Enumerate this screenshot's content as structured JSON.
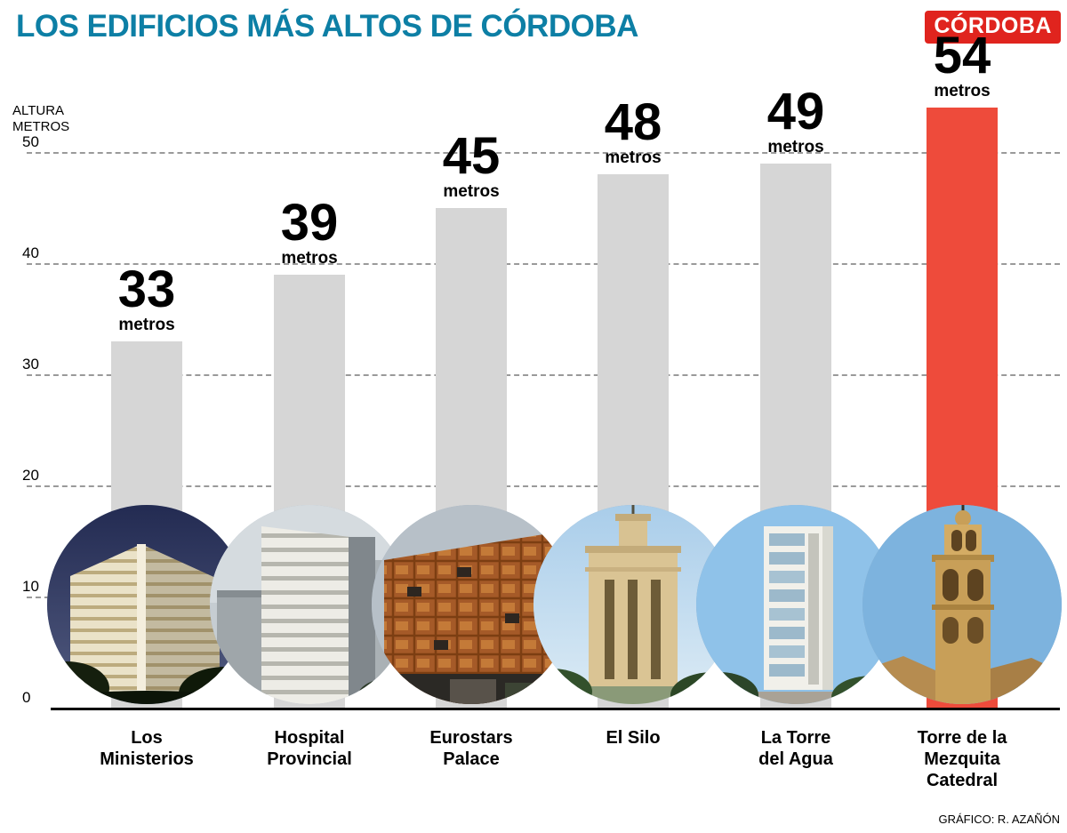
{
  "title": "LOS EDIFICIOS MÁS ALTOS DE CÓRDOBA",
  "logo": "CÓRDOBA",
  "axis": {
    "label_line1": "ALTURA",
    "label_line2": "METROS",
    "ticks": [
      "0",
      "10",
      "20",
      "30",
      "40",
      "50"
    ]
  },
  "credit": "GRÁFICO: R. AZAÑÓN",
  "chart_data": {
    "type": "bar",
    "title": "LOS EDIFICIOS MÁS ALTOS DE CÓRDOBA",
    "xlabel": "",
    "ylabel": "ALTURA METROS",
    "ylim": [
      0,
      54
    ],
    "yticks": [
      0,
      10,
      20,
      30,
      40,
      50
    ],
    "grid": "horizontal dashed",
    "legend": "none",
    "unit": "metros",
    "categories": [
      "Los Ministerios",
      "Hospital Provincial",
      "Eurostars Palace",
      "El Silo",
      "La Torre del Agua",
      "Torre de la Mezquita Catedral"
    ],
    "values": [
      33,
      39,
      45,
      48,
      49,
      54
    ],
    "bar_colors": [
      "#d6d6d6",
      "#d6d6d6",
      "#d6d6d6",
      "#d6d6d6",
      "#d6d6d6",
      "#ee4b3b"
    ],
    "highlight_index": 5
  },
  "bars": [
    {
      "value": "33",
      "unit": "metros",
      "name": "Los\nMinisterios"
    },
    {
      "value": "39",
      "unit": "metros",
      "name": "Hospital\nProvincial"
    },
    {
      "value": "45",
      "unit": "metros",
      "name": "Eurostars\nPalace"
    },
    {
      "value": "48",
      "unit": "metros",
      "name": "El Silo"
    },
    {
      "value": "49",
      "unit": "metros",
      "name": "La Torre\ndel Agua"
    },
    {
      "value": "54",
      "unit": "metros",
      "name": "Torre de la\nMezquita\nCatedral"
    }
  ],
  "colors": {
    "title": "#0d7fa5",
    "logo_bg": "#e0241e",
    "bar": "#d6d6d6",
    "highlight": "#ee4b3b"
  }
}
